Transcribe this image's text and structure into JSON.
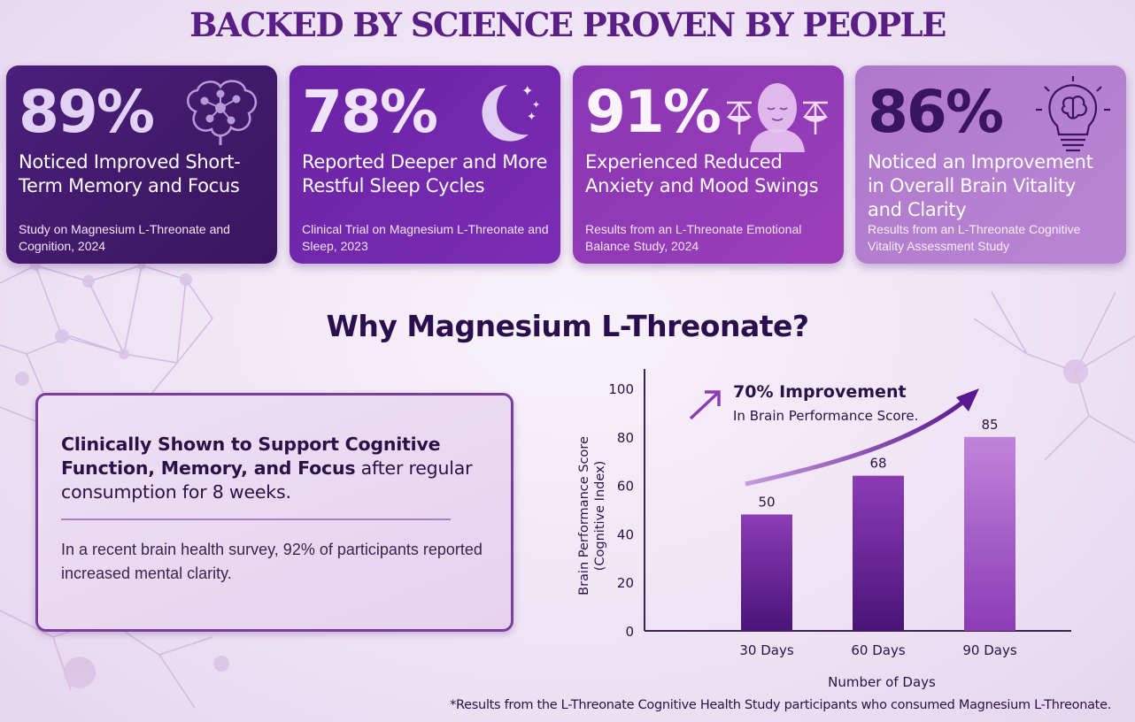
{
  "headline": "BACKED BY SCIENCE PROVEN BY PEOPLE",
  "cards": [
    {
      "percent": "89%",
      "claim": "Noticed Improved Short-Term Memory and Focus",
      "source": "Study on Magnesium L-Threonate and Cognition, 2024",
      "icon": "brain-network-icon"
    },
    {
      "percent": "78%",
      "claim": "Reported Deeper and More Restful Sleep Cycles",
      "source": "Clinical Trial on Magnesium L-Threonate and Sleep, 2023",
      "icon": "moon-stars-icon"
    },
    {
      "percent": "91%",
      "claim": "Experienced Reduced Anxiety and Mood Swings",
      "source": "Results from an L-Threonate Emotional Balance Study, 2024",
      "icon": "calm-face-scales-icon"
    },
    {
      "percent": "86%",
      "claim": "Noticed an Improvement in Overall Brain Vitality and Clarity",
      "source": "Results from an L-Threonate Cognitive Vitality Assessment Study",
      "icon": "lightbulb-brain-icon"
    }
  ],
  "section_title": "Why Magnesium L-Threonate?",
  "info": {
    "lead_bold": "Clinically Shown to Support Cognitive Function, Memory, and Focus",
    "lead_rest": " after regular consumption for 8 weeks.",
    "note": "In a recent brain health survey, 92% of participants reported increased mental clarity."
  },
  "chart_data": {
    "type": "bar",
    "categories": [
      "30 Days",
      "60 Days",
      "90 Days"
    ],
    "values": [
      50,
      68,
      85
    ],
    "data_labels": [
      "50",
      "68",
      "85"
    ],
    "bar_heights": [
      48,
      64,
      80
    ],
    "xlabel": "Number of Days",
    "ylabel_line1": "Brain Performance Score",
    "ylabel_line2": "(Cognitive Index)",
    "ylim": [
      0,
      100
    ],
    "yticks": [
      "0",
      "20",
      "40",
      "60",
      "80",
      "100"
    ],
    "annotation_title": "70% Improvement",
    "annotation_sub": "In Brain Performance Score.",
    "colors": {
      "bar_dark": "#4a1478",
      "bar_light": "#b46ad0",
      "axis": "#3a2450",
      "arrow": "#6a23a3"
    }
  },
  "footnote": "*Results from the L-Threonate Cognitive Health Study participants who consumed Magnesium L-Threonate."
}
